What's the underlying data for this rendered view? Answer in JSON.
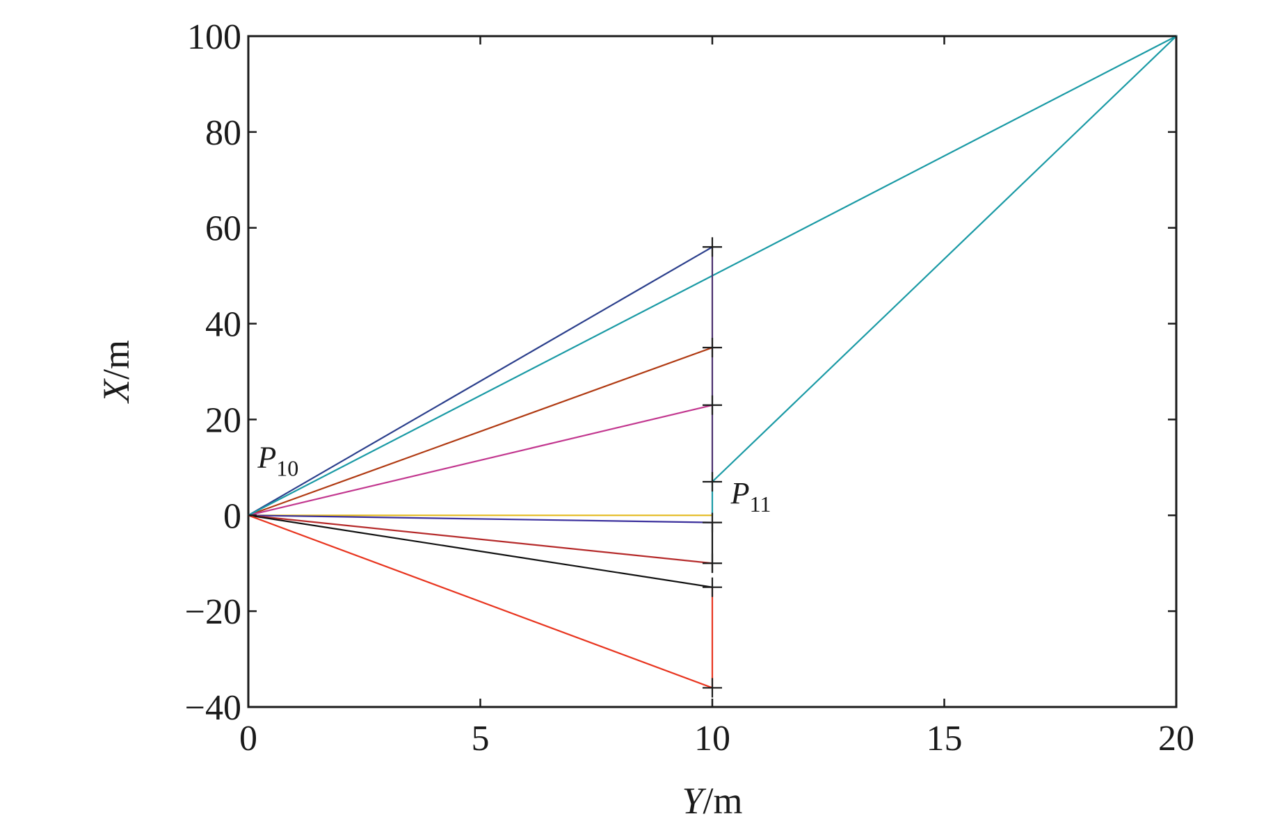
{
  "chart_data": {
    "type": "line",
    "xlabel": {
      "var": "Y",
      "unit": "/m"
    },
    "ylabel": {
      "var": "X",
      "unit": "/m"
    },
    "xlim": [
      0,
      20
    ],
    "ylim": [
      -40,
      100
    ],
    "x_ticks": [
      0,
      5,
      10,
      15,
      20
    ],
    "y_ticks": [
      -40,
      -20,
      0,
      20,
      40,
      60,
      80,
      100
    ],
    "x_tick_labels": [
      "0",
      "5",
      "10",
      "15",
      "20"
    ],
    "y_tick_labels": [
      "−40",
      "−20",
      "0",
      "20",
      "40",
      "60",
      "80",
      "100"
    ],
    "grid": false,
    "legend": "none",
    "annotations": [
      {
        "id": "p10",
        "main": "P",
        "sub": "10",
        "x": 0.2,
        "y": 10
      },
      {
        "id": "p11",
        "main": "P",
        "sub": "11",
        "x": 10.4,
        "y": 2.5
      }
    ],
    "series": [
      {
        "color": "#2b3f8c",
        "x": [
          0,
          10
        ],
        "y": [
          0,
          56
        ]
      },
      {
        "color": "#b03a12",
        "x": [
          0,
          10
        ],
        "y": [
          0,
          35
        ]
      },
      {
        "color": "#c2378f",
        "x": [
          0,
          10
        ],
        "y": [
          0,
          23
        ]
      },
      {
        "color": "#1a9aa5",
        "x": [
          0,
          20,
          10,
          10
        ],
        "y": [
          0,
          100,
          7,
          0
        ]
      },
      {
        "color": "#e3b91b",
        "x": [
          0,
          10
        ],
        "y": [
          0,
          0
        ]
      },
      {
        "color": "#3a2f9c",
        "x": [
          0,
          10
        ],
        "y": [
          0,
          -1.5
        ]
      },
      {
        "color": "#b52a2a",
        "x": [
          0,
          10
        ],
        "y": [
          0,
          -10
        ]
      },
      {
        "color": "#111111",
        "x": [
          0,
          10
        ],
        "y": [
          0,
          -15
        ]
      },
      {
        "color": "#e8351f",
        "x": [
          0,
          10
        ],
        "y": [
          0,
          -36
        ]
      },
      {
        "color": "#4a2f6e",
        "x": [
          10,
          10
        ],
        "y": [
          56,
          7
        ]
      },
      {
        "color": "#111111",
        "x": [
          10,
          10
        ],
        "y": [
          -1.5,
          -12
        ]
      },
      {
        "color": "#e8351f",
        "x": [
          10,
          10
        ],
        "y": [
          -15,
          -36
        ]
      }
    ],
    "markers": [
      {
        "x": 10,
        "y": 56
      },
      {
        "x": 10,
        "y": 35
      },
      {
        "x": 10,
        "y": 23
      },
      {
        "x": 10,
        "y": 7
      },
      {
        "x": 10,
        "y": -1.5
      },
      {
        "x": 10,
        "y": -10
      },
      {
        "x": 10,
        "y": -15
      },
      {
        "x": 10,
        "y": -36
      }
    ]
  }
}
